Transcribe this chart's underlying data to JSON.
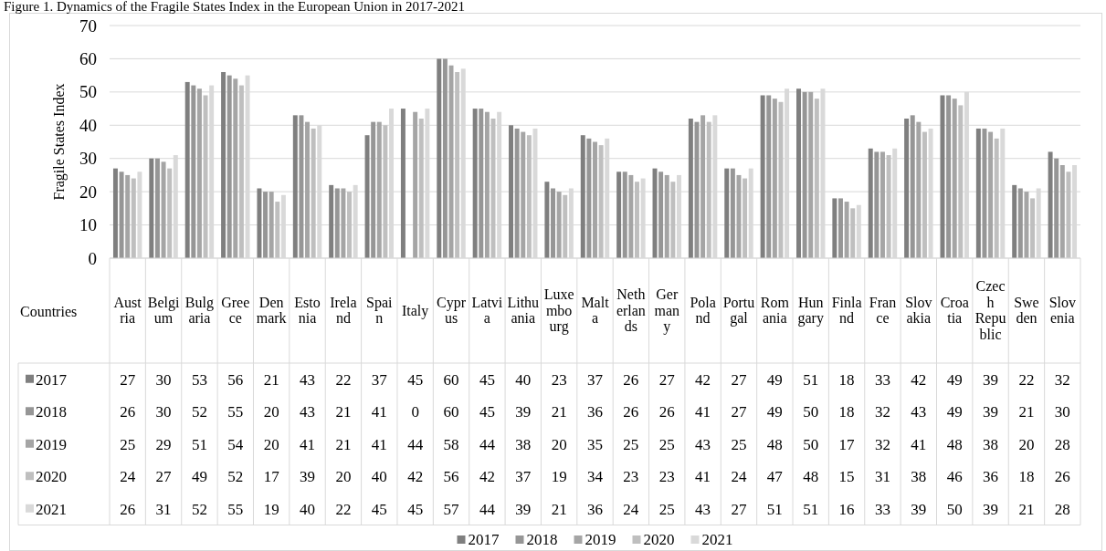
{
  "chart_data": {
    "type": "bar",
    "title": "Figure 1. Dynamics of the Fragile States Index in the European Union in 2017-2021",
    "xlabel": "Countries",
    "ylabel": "Fragile States Index",
    "categories": [
      "Austria",
      "Belgium",
      "Bulgaria",
      "Greece",
      "Denmark",
      "Estonia",
      "Ireland",
      "Spain",
      "Italy",
      "Cyprus",
      "Latvia",
      "Lithuania",
      "Luxembourg",
      "Malta",
      "Netherlands",
      "Germany",
      "Poland",
      "Portugal",
      "Romania",
      "Hungary",
      "Finland",
      "France",
      "Slovakia",
      "Croatia",
      "Czech Republic",
      "Sweden",
      "Slovenia"
    ],
    "series": [
      {
        "name": "2017",
        "color": "#7f7f7f",
        "values": [
          27,
          30,
          53,
          56,
          21,
          43,
          22,
          37,
          45,
          60,
          45,
          40,
          23,
          37,
          26,
          27,
          42,
          27,
          49,
          51,
          18,
          33,
          42,
          49,
          39,
          22,
          32
        ]
      },
      {
        "name": "2018",
        "color": "#969696",
        "values": [
          26,
          30,
          52,
          55,
          20,
          43,
          21,
          41,
          0,
          60,
          45,
          39,
          21,
          36,
          26,
          26,
          41,
          27,
          49,
          50,
          18,
          32,
          43,
          49,
          39,
          21,
          30
        ]
      },
      {
        "name": "2019",
        "color": "#a5a5a5",
        "values": [
          25,
          29,
          51,
          54,
          20,
          41,
          21,
          41,
          44,
          58,
          44,
          38,
          20,
          35,
          25,
          25,
          43,
          25,
          48,
          50,
          17,
          32,
          41,
          48,
          38,
          20,
          28
        ]
      },
      {
        "name": "2020",
        "color": "#bfbfbf",
        "values": [
          24,
          27,
          49,
          52,
          17,
          39,
          20,
          40,
          42,
          56,
          42,
          37,
          19,
          34,
          23,
          23,
          41,
          24,
          47,
          48,
          15,
          31,
          38,
          46,
          36,
          18,
          26
        ]
      },
      {
        "name": "2021",
        "color": "#d9d9d9",
        "values": [
          26,
          31,
          52,
          55,
          19,
          40,
          22,
          45,
          45,
          57,
          44,
          39,
          21,
          36,
          24,
          25,
          43,
          27,
          51,
          51,
          16,
          33,
          39,
          50,
          39,
          21,
          28
        ]
      }
    ],
    "ylim": [
      0,
      70
    ],
    "yticks": [
      0,
      10,
      20,
      30,
      40,
      50,
      60,
      70
    ],
    "grid": "y",
    "legend": "bottom",
    "data_labels": true
  }
}
